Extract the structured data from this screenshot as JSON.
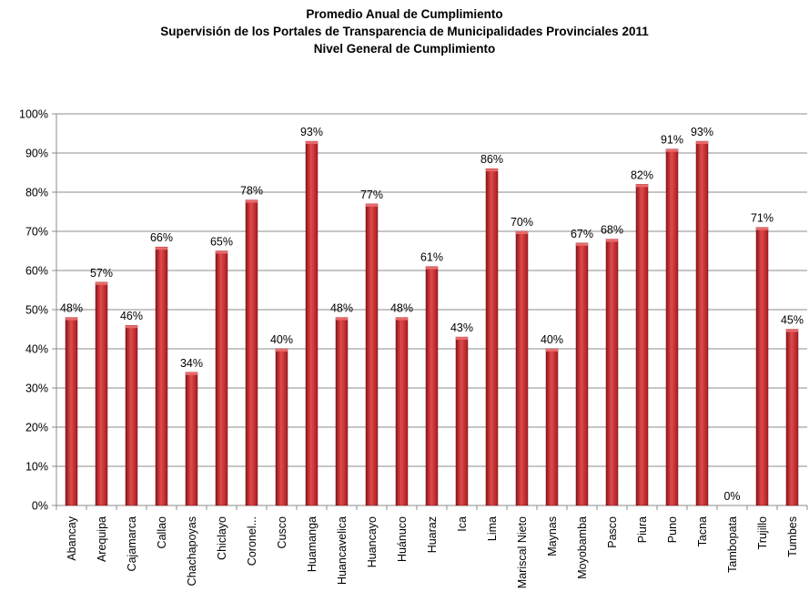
{
  "chart_data": {
    "type": "bar",
    "title": "Promedio Anual de Cumplimiento",
    "subtitle": "Supervisión de los Portales de Transparencia de Municipalidades Provinciales 2011",
    "subtitle2": "Nivel General de Cumplimiento",
    "xlabel": "",
    "ylabel": "",
    "ylim": [
      0,
      100
    ],
    "yticks": [
      0,
      10,
      20,
      30,
      40,
      50,
      60,
      70,
      80,
      90,
      100
    ],
    "ytick_labels": [
      "0%",
      "10%",
      "20%",
      "30%",
      "40%",
      "50%",
      "60%",
      "70%",
      "80%",
      "90%",
      "100%"
    ],
    "grid": true,
    "legend": "none",
    "bar_color": "#c0282b",
    "categories": [
      "Abancay",
      "Arequipa",
      "Cajamarca",
      "Callao",
      "Chachapoyas",
      "Chiclayo",
      "Coronel...",
      "Cusco",
      "Huamanga",
      "Huancavelica",
      "Huancayo",
      "Huánuco",
      "Huaraz",
      "Ica",
      "Lima",
      "Mariscal Nieto",
      "Maynas",
      "Moyobamba",
      "Pasco",
      "Piura",
      "Puno",
      "Tacna",
      "Tambopata",
      "Trujillo",
      "Tumbes"
    ],
    "values": [
      48,
      57,
      46,
      66,
      34,
      65,
      78,
      40,
      93,
      48,
      77,
      48,
      61,
      43,
      86,
      70,
      40,
      67,
      68,
      82,
      91,
      93,
      0,
      71,
      45
    ],
    "data_labels": [
      "48%",
      "57%",
      "46%",
      "66%",
      "34%",
      "65%",
      "78%",
      "40%",
      "93%",
      "48%",
      "77%",
      "48%",
      "61%",
      "43%",
      "86%",
      "70%",
      "40%",
      "67%",
      "68%",
      "82%",
      "91%",
      "93%",
      "0%",
      "71%",
      "45%"
    ]
  }
}
